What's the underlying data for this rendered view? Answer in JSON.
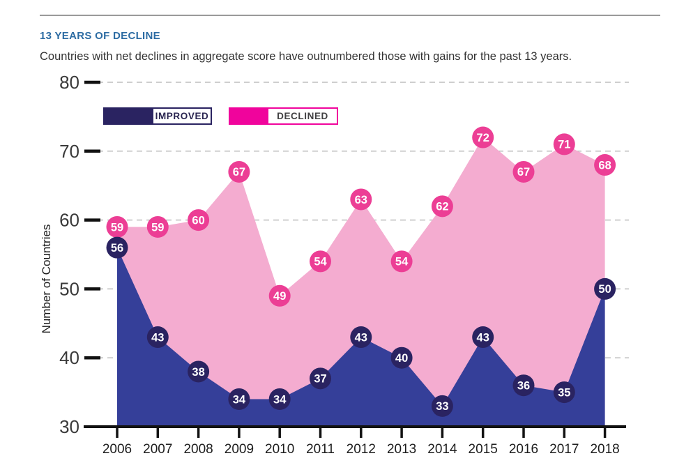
{
  "header": {
    "title": "13 YEARS OF DECLINE",
    "subtitle": "Countries with net declines in aggregate score have outnumbered those with gains for the past 13 years."
  },
  "legend": [
    {
      "label": "IMPROVED",
      "swatch_color": "#2A2361",
      "border_color": "#2A2361",
      "text_color": "#2A2550"
    },
    {
      "label": "DECLINED",
      "swatch_color": "#F0049C",
      "border_color": "#F0049C",
      "text_color": "#414042"
    }
  ],
  "chart_data": {
    "type": "area",
    "title": "13 YEARS OF DECLINE",
    "subtitle": "Countries with net declines in aggregate score have outnumbered those with gains for the past 13 years.",
    "x": [
      2006,
      2007,
      2008,
      2009,
      2010,
      2011,
      2012,
      2013,
      2014,
      2015,
      2016,
      2017,
      2018
    ],
    "series": [
      {
        "name": "IMPROVED",
        "values": [
          56,
          43,
          38,
          34,
          34,
          37,
          43,
          40,
          33,
          43,
          36,
          35,
          50
        ],
        "area_color": "#353F99",
        "point_color": "#2A2361"
      },
      {
        "name": "DECLINED",
        "values": [
          59,
          59,
          60,
          67,
          49,
          54,
          63,
          54,
          62,
          72,
          67,
          71,
          68
        ],
        "area_color": "#F4ACD0",
        "point_color": "#EC3E95"
      }
    ],
    "xlabel": "",
    "ylabel": "Number of Countries",
    "ylim": [
      30,
      80
    ],
    "yticks": [
      30,
      40,
      50,
      60,
      70,
      80
    ],
    "grid": "horizontal-dashed",
    "legend_position": "top-left-inside",
    "point_label_color": "#ffffff"
  },
  "axis_style": {
    "axis_color": "#121212",
    "grid_color": "#BDBDBD",
    "ytick_label_color": "#3A3A3A",
    "year_label_color": "#1D1D1D",
    "ylabel_color": "#1A1A1A"
  }
}
